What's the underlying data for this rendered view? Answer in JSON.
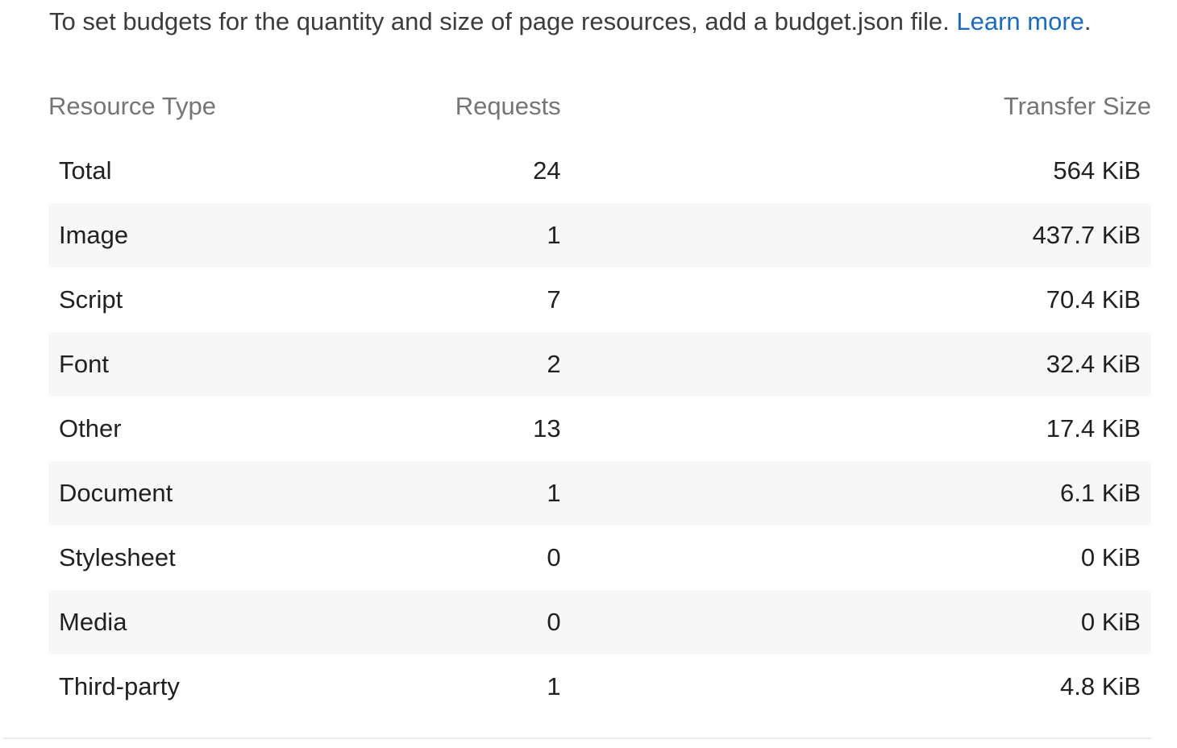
{
  "intro": {
    "text": "To set budgets for the quantity and size of page resources, add a budget.json file.",
    "link_label": "Learn more"
  },
  "table": {
    "headers": {
      "type": "Resource Type",
      "requests": "Requests",
      "size": "Transfer Size"
    },
    "rows": [
      {
        "type": "Total",
        "requests": "24",
        "size": "564 KiB"
      },
      {
        "type": "Image",
        "requests": "1",
        "size": "437.7 KiB"
      },
      {
        "type": "Script",
        "requests": "7",
        "size": "70.4 KiB"
      },
      {
        "type": "Font",
        "requests": "2",
        "size": "32.4 KiB"
      },
      {
        "type": "Other",
        "requests": "13",
        "size": "17.4 KiB"
      },
      {
        "type": "Document",
        "requests": "1",
        "size": "6.1 KiB"
      },
      {
        "type": "Stylesheet",
        "requests": "0",
        "size": "0 KiB"
      },
      {
        "type": "Media",
        "requests": "0",
        "size": "0 KiB"
      },
      {
        "type": "Third-party",
        "requests": "1",
        "size": "4.8 KiB"
      }
    ]
  },
  "colors": {
    "link": "#1a6bc9",
    "header_text": "#757575",
    "stripe": "#f7f7f7"
  }
}
